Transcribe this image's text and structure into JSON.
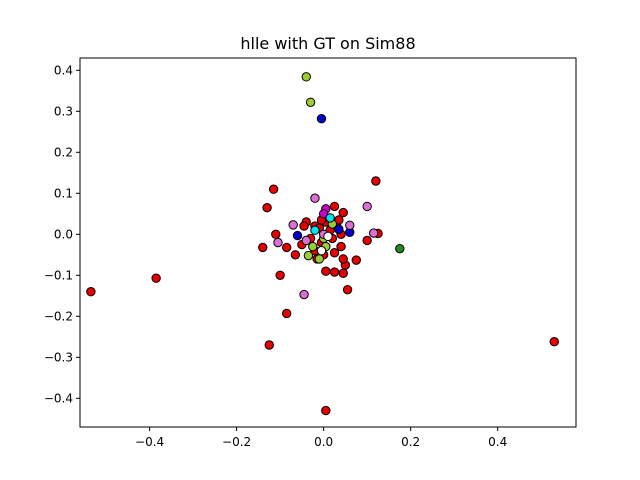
{
  "chart_data": {
    "type": "scatter",
    "title": "hlle with GT on Sim88",
    "xlabel": "",
    "ylabel": "",
    "xlim": [
      -0.56,
      0.58
    ],
    "ylim": [
      -0.47,
      0.43
    ],
    "xticks": [
      -0.4,
      -0.2,
      0.0,
      0.2,
      0.4
    ],
    "xtick_labels": [
      "−0.4",
      "−0.2",
      "0.0",
      "0.2",
      "0.4"
    ],
    "yticks": [
      -0.4,
      -0.3,
      -0.2,
      -0.1,
      0.0,
      0.1,
      0.2,
      0.3,
      0.4
    ],
    "ytick_labels": [
      "−0.4",
      "−0.3",
      "−0.2",
      "−0.1",
      "0.0",
      "0.1",
      "0.2",
      "0.3",
      "0.4"
    ],
    "grid": false,
    "legend": "none",
    "colors": {
      "red": "#e60000",
      "yellowgreen": "#9acd32",
      "blue": "#0000cd",
      "green": "#1e8c1e",
      "violet": "#da70d6",
      "magenta": "#cc00cc",
      "cyan": "#00e5ee",
      "white": "#ffffff"
    },
    "series": [
      {
        "color": "red",
        "points": [
          [
            -0.535,
            -0.14
          ],
          [
            -0.385,
            -0.107
          ],
          [
            0.53,
            -0.262
          ],
          [
            -0.125,
            -0.27
          ],
          [
            0.005,
            -0.43
          ],
          [
            -0.085,
            -0.193
          ],
          [
            0.055,
            -0.135
          ],
          [
            -0.1,
            -0.1
          ],
          [
            -0.14,
            -0.032
          ],
          [
            -0.065,
            -0.05
          ],
          [
            -0.085,
            -0.032
          ],
          [
            0.12,
            0.13
          ],
          [
            -0.115,
            0.11
          ],
          [
            -0.13,
            0.065
          ],
          [
            -0.11,
            0.0
          ],
          [
            0.075,
            -0.063
          ],
          [
            0.005,
            -0.09
          ],
          [
            0.025,
            -0.092
          ],
          [
            0.045,
            -0.095
          ],
          [
            0.05,
            -0.075
          ],
          [
            0.1,
            -0.015
          ],
          [
            0.125,
            0.002
          ],
          [
            0.025,
            0.068
          ],
          [
            0.045,
            0.053
          ],
          [
            0.0,
            0.04
          ],
          [
            0.005,
            0.03
          ],
          [
            -0.005,
            0.035
          ],
          [
            -0.02,
            0.02
          ],
          [
            -0.04,
            0.03
          ],
          [
            -0.03,
            -0.01
          ],
          [
            -0.05,
            -0.025
          ],
          [
            -0.02,
            -0.04
          ],
          [
            0.02,
            -0.01
          ],
          [
            0.04,
            -0.03
          ],
          [
            0.04,
            0.0
          ],
          [
            0.025,
            -0.045
          ],
          [
            -0.045,
            0.02
          ],
          [
            0.015,
            0.01
          ],
          [
            0.045,
            -0.06
          ],
          [
            -0.015,
            -0.06
          ],
          [
            0.0,
            -0.05
          ],
          [
            0.03,
            0.02
          ],
          [
            -0.01,
            0.015
          ],
          [
            0.035,
            0.035
          ],
          [
            -0.005,
            -0.02
          ]
        ]
      },
      {
        "color": "yellowgreen",
        "points": [
          [
            -0.04,
            0.384
          ],
          [
            -0.03,
            0.322
          ],
          [
            -0.035,
            -0.052
          ],
          [
            -0.025,
            -0.03
          ],
          [
            0.005,
            -0.03
          ],
          [
            0.02,
            0.025
          ],
          [
            -0.01,
            -0.06
          ],
          [
            0.0,
            -0.01
          ]
        ]
      },
      {
        "color": "blue",
        "points": [
          [
            -0.005,
            0.282
          ],
          [
            0.06,
            0.005
          ],
          [
            -0.06,
            -0.003
          ],
          [
            0.035,
            0.012
          ]
        ]
      },
      {
        "color": "green",
        "points": [
          [
            0.175,
            -0.035
          ]
        ]
      },
      {
        "color": "violet",
        "points": [
          [
            0.1,
            0.068
          ],
          [
            -0.02,
            0.088
          ],
          [
            0.06,
            0.022
          ],
          [
            0.115,
            0.003
          ],
          [
            -0.045,
            -0.147
          ],
          [
            -0.07,
            0.023
          ],
          [
            -0.105,
            -0.02
          ],
          [
            0.0,
            0.0
          ],
          [
            -0.04,
            -0.015
          ]
        ]
      },
      {
        "color": "magenta",
        "points": [
          [
            0.005,
            0.062
          ],
          [
            0.0,
            0.05
          ]
        ]
      },
      {
        "color": "cyan",
        "points": [
          [
            -0.02,
            0.01
          ],
          [
            0.015,
            0.04
          ]
        ]
      },
      {
        "color": "white",
        "points": [
          [
            0.01,
            -0.005
          ],
          [
            -0.005,
            -0.04
          ]
        ]
      }
    ]
  }
}
